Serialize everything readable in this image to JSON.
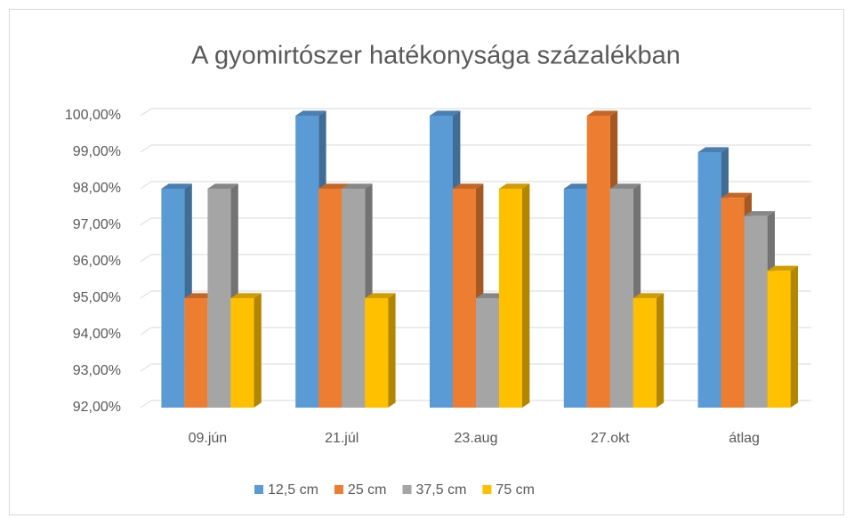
{
  "chart_data": {
    "type": "bar3d",
    "title": "A gyomirtószer hatékonysága százalékban",
    "categories": [
      "09.jún",
      "21.júl",
      "23.aug",
      "27.okt",
      "átlag"
    ],
    "series": [
      {
        "name": "12,5 cm",
        "color": "#5b9bd5",
        "values": [
          98,
          100,
          100,
          98,
          99
        ]
      },
      {
        "name": "25 cm",
        "color": "#ed7d31",
        "values": [
          95,
          98,
          98,
          100,
          97.75
        ]
      },
      {
        "name": "37,5 cm",
        "color": "#a5a5a5",
        "values": [
          98,
          98,
          95,
          98,
          97.25
        ]
      },
      {
        "name": "75 cm",
        "color": "#ffc000",
        "values": [
          95,
          95,
          98,
          95,
          95.75
        ]
      }
    ],
    "ylim": [
      92,
      100
    ],
    "yticks": [
      {
        "value": 92,
        "label": "92,00%"
      },
      {
        "value": 93,
        "label": "93,00%"
      },
      {
        "value": 94,
        "label": "94,00%"
      },
      {
        "value": 95,
        "label": "95,00%"
      },
      {
        "value": 96,
        "label": "96,00%"
      },
      {
        "value": 97,
        "label": "97,00%"
      },
      {
        "value": 98,
        "label": "98,00%"
      },
      {
        "value": 99,
        "label": "99,00%"
      },
      {
        "value": 100,
        "label": "100,00%"
      }
    ],
    "grid": true,
    "legend": "bottom"
  }
}
